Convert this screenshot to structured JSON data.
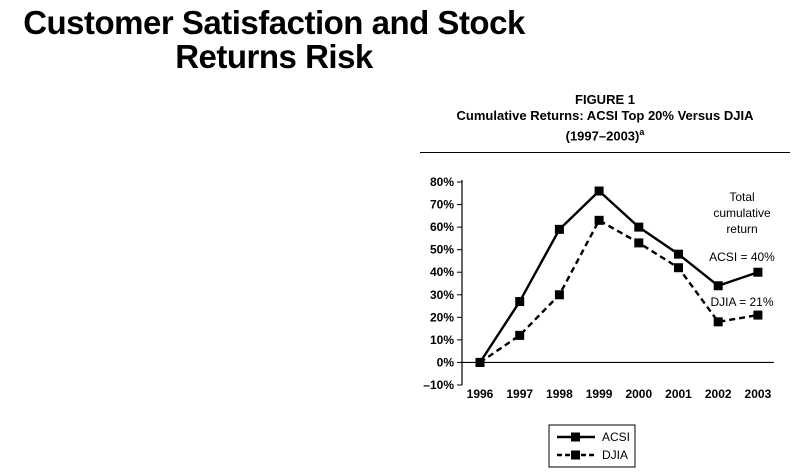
{
  "page": {
    "title_line1": "Customer Satisfaction and Stock",
    "title_line2": "Returns Risk"
  },
  "figure": {
    "number": "FIGURE 1",
    "caption": "Cumulative Returns: ACSI Top 20% Versus DJIA",
    "period": "(1997–2003)",
    "footnote_marker": "a"
  },
  "chart_data": {
    "type": "line",
    "x": [
      "1996",
      "1997",
      "1998",
      "1999",
      "2000",
      "2001",
      "2002",
      "2003"
    ],
    "series": [
      {
        "name": "ACSI",
        "values": [
          0,
          27,
          59,
          76,
          60,
          48,
          34,
          40
        ],
        "style": "solid",
        "marker": "square",
        "color": "#000000"
      },
      {
        "name": "DJIA",
        "values": [
          0,
          12,
          30,
          63,
          53,
          42,
          18,
          21
        ],
        "style": "dashed",
        "marker": "square",
        "color": "#000000"
      }
    ],
    "ylim": [
      -10,
      80
    ],
    "yticks": [
      "80%",
      "70%",
      "60%",
      "50%",
      "40%",
      "30%",
      "20%",
      "10%",
      "0%",
      "–10%"
    ],
    "ytick_values": [
      80,
      70,
      60,
      50,
      40,
      30,
      20,
      10,
      0,
      -10
    ],
    "grid": false,
    "legend": {
      "placement": "bottom",
      "entries": [
        "ACSI",
        "DJIA"
      ]
    },
    "annotations": {
      "heading": [
        "Total",
        "cumulative",
        "return"
      ],
      "acsi_label": "ACSI = 40%",
      "djia_label": "DJIA = 21%"
    }
  }
}
